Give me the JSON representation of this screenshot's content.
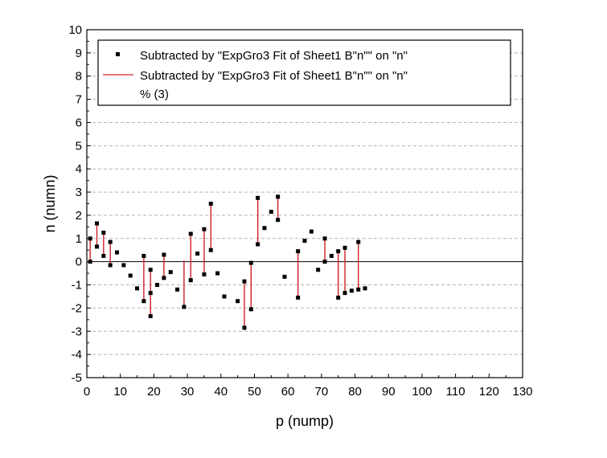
{
  "chart_data": {
    "type": "scatter",
    "xlabel": "p (nump)",
    "ylabel": "n (numn)",
    "xlim": [
      0,
      130
    ],
    "ylim": [
      -5,
      10
    ],
    "xticks": [
      0,
      10,
      20,
      30,
      40,
      50,
      60,
      70,
      80,
      90,
      100,
      110,
      120,
      130
    ],
    "yticks": [
      -5,
      -4,
      -3,
      -2,
      -1,
      0,
      1,
      2,
      3,
      4,
      5,
      6,
      7,
      8,
      9,
      10
    ],
    "grid": "horizontal dashed",
    "zero_line": 0,
    "legend": {
      "placement": "top",
      "entries": [
        {
          "label": "Subtracted by \"ExpGro3 Fit of Sheet1 B\"n\"\" on \"n\"",
          "marker": "square",
          "color": "#000000"
        },
        {
          "label": "Subtracted by \"ExpGro3 Fit of Sheet1 B\"n\"\" on \"n\"",
          "marker": "line",
          "color": "#d0202a"
        },
        {
          "label": "% (3)",
          "marker": "none",
          "color": "#000000"
        }
      ]
    },
    "series": [
      {
        "name": "Subtracted by \"ExpGro3 Fit of Sheet1 B\"n\"\" on \"n\"",
        "color": "#000000",
        "points": [
          [
            1,
            1.0
          ],
          [
            1,
            0.0
          ],
          [
            3,
            1.65
          ],
          [
            3,
            0.65
          ],
          [
            5,
            1.25
          ],
          [
            5,
            0.25
          ],
          [
            7,
            0.85
          ],
          [
            7,
            -0.15
          ],
          [
            9,
            0.4
          ],
          [
            11,
            -0.15
          ],
          [
            13,
            -0.6
          ],
          [
            15,
            -1.15
          ],
          [
            17,
            0.25
          ],
          [
            17,
            -1.7
          ],
          [
            19,
            -0.35
          ],
          [
            19,
            -1.35
          ],
          [
            19,
            -2.35
          ],
          [
            21,
            -1.0
          ],
          [
            23,
            0.3
          ],
          [
            23,
            -0.7
          ],
          [
            25,
            -0.45
          ],
          [
            27,
            -1.2
          ],
          [
            29,
            -1.95
          ],
          [
            31,
            1.2
          ],
          [
            31,
            -0.8
          ],
          [
            33,
            0.35
          ],
          [
            35,
            1.4
          ],
          [
            35,
            -0.55
          ],
          [
            37,
            2.5
          ],
          [
            37,
            0.5
          ],
          [
            39,
            -0.5
          ],
          [
            41,
            -1.5
          ],
          [
            45,
            -1.7
          ],
          [
            47,
            -0.85
          ],
          [
            47,
            -2.85
          ],
          [
            49,
            -0.05
          ],
          [
            49,
            -2.05
          ],
          [
            51,
            2.75
          ],
          [
            51,
            0.75
          ],
          [
            53,
            1.45
          ],
          [
            55,
            2.15
          ],
          [
            57,
            2.8
          ],
          [
            57,
            1.8
          ],
          [
            59,
            -0.65
          ],
          [
            63,
            0.45
          ],
          [
            63,
            -1.55
          ],
          [
            65,
            0.9
          ],
          [
            67,
            1.3
          ],
          [
            69,
            -0.35
          ],
          [
            71,
            1.0
          ],
          [
            71,
            0.0
          ],
          [
            73,
            0.25
          ],
          [
            75,
            0.45
          ],
          [
            75,
            -1.55
          ],
          [
            77,
            0.6
          ],
          [
            77,
            -1.35
          ],
          [
            79,
            -1.25
          ],
          [
            81,
            0.85
          ],
          [
            81,
            -1.2
          ],
          [
            83,
            -1.15
          ]
        ]
      },
      {
        "name": "Subtracted by \"ExpGro3 Fit of Sheet1 B\"n\"\" on \"n\"",
        "color": "#d0202a",
        "segments": [
          [
            1,
            1.0,
            0.0
          ],
          [
            3,
            1.65,
            0.65
          ],
          [
            5,
            1.25,
            0.25
          ],
          [
            7,
            0.85,
            -0.15
          ],
          [
            17,
            0.25,
            -1.7
          ],
          [
            19,
            -0.35,
            -2.35
          ],
          [
            23,
            0.3,
            -0.7
          ],
          [
            29,
            0.05,
            -1.95
          ],
          [
            31,
            1.2,
            -0.8
          ],
          [
            35,
            1.4,
            -0.55
          ],
          [
            37,
            2.5,
            0.5
          ],
          [
            47,
            -0.85,
            -2.85
          ],
          [
            49,
            -0.05,
            -2.05
          ],
          [
            51,
            2.75,
            0.75
          ],
          [
            57,
            2.8,
            1.8
          ],
          [
            63,
            0.45,
            -1.55
          ],
          [
            71,
            1.0,
            0.0
          ],
          [
            75,
            0.45,
            -1.55
          ],
          [
            77,
            0.6,
            -1.35
          ],
          [
            81,
            0.85,
            -1.2
          ]
        ]
      }
    ]
  }
}
